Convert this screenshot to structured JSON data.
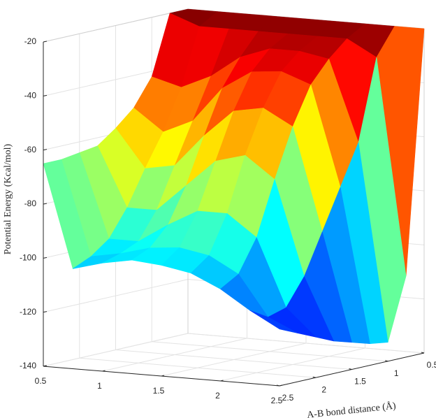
{
  "chart_data": {
    "type": "surface",
    "x": [
      0.5,
      0.75,
      1,
      1.25,
      1.5,
      1.75,
      2,
      2.25,
      2.5
    ],
    "y": [
      0.5,
      0.75,
      1,
      1.25,
      1.5,
      1.75,
      2,
      2.25,
      2.5
    ],
    "z": [
      [
        -20,
        -20,
        -20,
        -20,
        -20,
        -20,
        -20,
        -20,
        -20
      ],
      [
        -20,
        -24,
        -24,
        -24,
        -24,
        -24,
        -24,
        -30,
        -110
      ],
      [
        -42,
        -45,
        -40,
        -32,
        -28,
        -28,
        -30,
        -60,
        -133
      ],
      [
        -52,
        -60,
        -55,
        -42,
        -35,
        -34,
        -38,
        -75,
        -132
      ],
      [
        -58,
        -72,
        -70,
        -58,
        -48,
        -46,
        -52,
        -90,
        -130
      ],
      [
        -63,
        -85,
        -85,
        -75,
        -65,
        -62,
        -70,
        -105,
        -128
      ],
      [
        -64,
        -95,
        -95,
        -88,
        -82,
        -82,
        -90,
        -115,
        -125
      ],
      [
        -65,
        -100,
        -98,
        -95,
        -94,
        -96,
        -102,
        -117,
        -122
      ],
      [
        -65,
        -103,
        -100,
        -98,
        -99,
        -101,
        -106,
        -113,
        -119
      ]
    ],
    "xlim": [
      0.5,
      2.5
    ],
    "ylim": [
      0.5,
      2.5
    ],
    "zlim": [
      -140,
      -20
    ],
    "xticks": [
      0.5,
      1,
      1.5,
      2,
      2.5
    ],
    "yticks": [
      0.5,
      1,
      1.5,
      2,
      2.5
    ],
    "zticks": [
      -140,
      -120,
      -100,
      -80,
      -60,
      -40,
      -20
    ],
    "zlabel": "Potential Energy (Kcal/mol)",
    "ylabel": "A-B bond distance (Å)",
    "colormap": "jet",
    "grid": true
  }
}
